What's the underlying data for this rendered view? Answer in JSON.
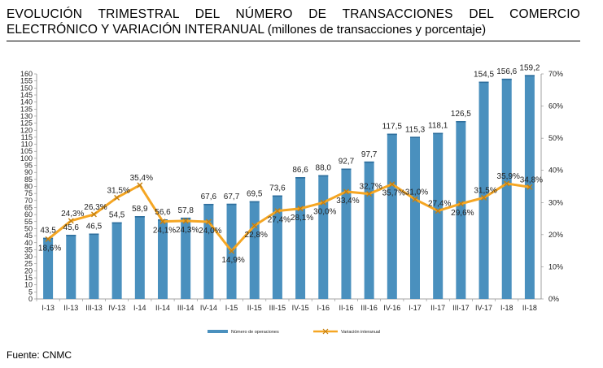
{
  "title": {
    "line1": "EVOLUCIÓN TRIMESTRAL DEL NÚMERO DE TRANSACCIONES DEL COMERCIO",
    "line2": "ELECTRÓNICO Y VARIACIÓN INTERANUAL",
    "subtitle": "(millones de transacciones y porcentaje)"
  },
  "source": "Fuente: CNMC",
  "colors": {
    "bar": "#4a90be",
    "bar_top": "#2f6f9d",
    "line": "#f5a623"
  },
  "chart_data": {
    "type": "bar",
    "categories": [
      "I-13",
      "II-13",
      "III-13",
      "IV-13",
      "I-14",
      "II-14",
      "III-14",
      "IV-14",
      "I-15",
      "II-15",
      "III-15",
      "IV-15",
      "I-16",
      "II-16",
      "III-16",
      "IV-16",
      "I-17",
      "II-17",
      "III-17",
      "IV-17",
      "I-18",
      "II-18"
    ],
    "series": [
      {
        "name": "Número de operaciones",
        "kind": "bar",
        "axis": "left",
        "values": [
          43.5,
          45.6,
          46.5,
          54.5,
          58.9,
          56.6,
          57.8,
          67.6,
          67.7,
          69.5,
          73.6,
          86.6,
          88.0,
          92.7,
          97.7,
          117.5,
          115.3,
          118.1,
          126.5,
          154.5,
          156.6,
          159.2
        ],
        "labels": [
          "43,5",
          "45,6",
          "46,5",
          "54,5",
          "58,9",
          "56,6",
          "57,8",
          "67,6",
          "67,7",
          "69,5",
          "73,6",
          "86,6",
          "88,0",
          "92,7",
          "97,7",
          "117,5",
          "115,3",
          "118,1",
          "126,5",
          "154,5",
          "156,6",
          "159,2"
        ]
      },
      {
        "name": "Variación interanual",
        "kind": "line",
        "axis": "right",
        "values": [
          18.6,
          24.3,
          26.3,
          31.5,
          35.4,
          24.1,
          24.3,
          24.0,
          14.9,
          22.8,
          27.4,
          28.1,
          30.0,
          33.4,
          32.7,
          35.7,
          31.0,
          27.4,
          29.6,
          31.5,
          35.9,
          34.8
        ],
        "labels": [
          "18,6%",
          "24,3%",
          "26,3%",
          "31,5%",
          "35,4%",
          "24,1%",
          "24,3%",
          "24,0%",
          "14,9%",
          "22,8%",
          "27,4%",
          "28,1%",
          "30,0%",
          "33,4%",
          "32,7%",
          "35,7%",
          "31,0%",
          "27,4%",
          "29,6%",
          "31,5%",
          "35,9%",
          "34,8%"
        ]
      }
    ],
    "y_left": {
      "range": [
        0,
        160
      ],
      "ticks": [
        "0",
        "5",
        "10",
        "15",
        "20",
        "25",
        "30",
        "35",
        "40",
        "45",
        "50",
        "55",
        "60",
        "65",
        "70",
        "75",
        "80",
        "85",
        "90",
        "95",
        "100",
        "105",
        "110",
        "115",
        "120",
        "125",
        "130",
        "135",
        "140",
        "145",
        "150",
        "155",
        "160"
      ]
    },
    "y_right": {
      "range": [
        0,
        70
      ],
      "ticks": [
        "0%",
        "10%",
        "20%",
        "30%",
        "40%",
        "50%",
        "60%",
        "70%"
      ]
    },
    "grid": false,
    "legend_position": "bottom"
  }
}
